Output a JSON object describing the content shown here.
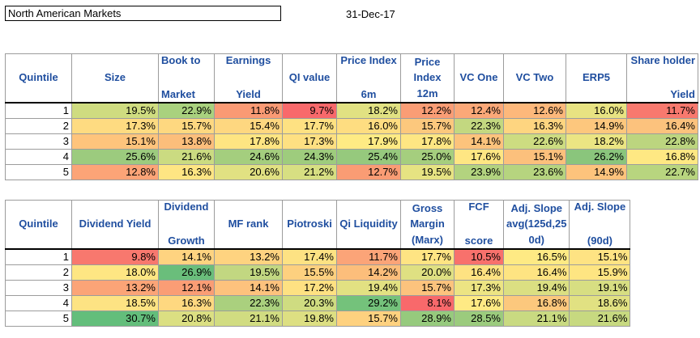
{
  "title": "North American Markets",
  "date": "31-Dec-17",
  "table1": {
    "columns": [
      {
        "lines": [
          "Quintile"
        ],
        "align": "mid",
        "width": 82
      },
      {
        "lines": [
          "Size"
        ],
        "align": "mid",
        "width": 107
      },
      {
        "lines": [
          "Book to",
          "Market"
        ],
        "align": "left",
        "width": 69
      },
      {
        "lines": [
          "Earnings",
          "Yield"
        ],
        "align": "mid",
        "width": 84
      },
      {
        "lines": [
          "QI value"
        ],
        "align": "mid",
        "width": 67
      },
      {
        "lines": [
          "Price Index",
          "6m"
        ],
        "align": "mid",
        "width": 79
      },
      {
        "lines": [
          "Price",
          "Index",
          "12m"
        ],
        "align": "mid",
        "width": 66
      },
      {
        "lines": [
          "VC One"
        ],
        "align": "mid",
        "width": 61
      },
      {
        "lines": [
          "VC Two"
        ],
        "align": "mid",
        "width": 77
      },
      {
        "lines": [
          "ERP5"
        ],
        "align": "mid",
        "width": 75
      },
      {
        "lines": [
          "Share holder",
          "Yield"
        ],
        "align": "right",
        "width": 88
      }
    ],
    "rows": [
      [
        "1",
        "19.5%",
        "22.9%",
        "11.8%",
        "9.7%",
        "18.2%",
        "12.2%",
        "12.4%",
        "12.6%",
        "16.0%",
        "11.7%"
      ],
      [
        "2",
        "17.3%",
        "15.7%",
        "15.4%",
        "17.7%",
        "16.0%",
        "15.7%",
        "22.3%",
        "16.3%",
        "14.9%",
        "16.4%"
      ],
      [
        "3",
        "15.1%",
        "13.8%",
        "17.8%",
        "17.3%",
        "17.9%",
        "17.8%",
        "14.1%",
        "22.6%",
        "18.2%",
        "22.8%"
      ],
      [
        "4",
        "25.6%",
        "21.6%",
        "24.6%",
        "24.3%",
        "25.4%",
        "25.0%",
        "17.6%",
        "15.1%",
        "26.2%",
        "16.8%"
      ],
      [
        "5",
        "12.8%",
        "16.3%",
        "20.6%",
        "21.2%",
        "12.7%",
        "19.5%",
        "23.9%",
        "23.6%",
        "14.9%",
        "22.7%"
      ]
    ],
    "colors": [
      [
        "#ffffff",
        "#cfdc80",
        "#a9d17e",
        "#fa9a74",
        "#f8696b",
        "#e1e182",
        "#fa9d75",
        "#fba878",
        "#fdb87b",
        "#e8e382",
        "#f8796e"
      ],
      [
        "#ffffff",
        "#fedb81",
        "#fed880",
        "#fed780",
        "#fee182",
        "#fedd81",
        "#fcc87d",
        "#c3d880",
        "#fed580",
        "#fdc77d",
        "#fcc27d"
      ],
      [
        "#ffffff",
        "#fec47c",
        "#fcbe7b",
        "#fee582",
        "#fee082",
        "#feeb84",
        "#fee683",
        "#fcc37c",
        "#cddc81",
        "#ebe583",
        "#bcd57f"
      ],
      [
        "#ffffff",
        "#9ccb7e",
        "#cbdb81",
        "#a4ce7e",
        "#9ecc7d",
        "#96c97d",
        "#a5ce7e",
        "#fee683",
        "#fcc07c",
        "#8ac57c",
        "#fee883"
      ],
      [
        "#ffffff",
        "#fca477",
        "#fee583",
        "#e1e182",
        "#d7df82",
        "#fa9c74",
        "#e6e382",
        "#b3d37f",
        "#b6d47f",
        "#fdc37c",
        "#b8d57f"
      ]
    ]
  },
  "table2": {
    "columns": [
      {
        "lines": [
          "Quintile"
        ],
        "align": "mid",
        "width": 82
      },
      {
        "lines": [
          "Dividend Yield"
        ],
        "align": "mid",
        "width": 107
      },
      {
        "lines": [
          "Dividend",
          "Growth"
        ],
        "align": "mid",
        "width": 69
      },
      {
        "lines": [
          "MF rank"
        ],
        "align": "mid",
        "width": 84
      },
      {
        "lines": [
          "Piotroski"
        ],
        "align": "mid",
        "width": 67
      },
      {
        "lines": [
          "Qi Liquidity"
        ],
        "align": "mid",
        "width": 79
      },
      {
        "lines": [
          "Gross",
          "Margin",
          "(Marx)"
        ],
        "align": "mid",
        "width": 66
      },
      {
        "lines": [
          "FCF",
          "score"
        ],
        "align": "mid",
        "width": 61
      },
      {
        "lines": [
          "Adj. Slope",
          "avg(125d,25",
          "0d)"
        ],
        "align": "mid",
        "width": 77
      },
      {
        "lines": [
          "Adj. Slope",
          "(90d)"
        ],
        "align": "mid",
        "width": 75
      }
    ],
    "rows": [
      [
        "1",
        "9.8%",
        "14.1%",
        "13.2%",
        "17.4%",
        "11.7%",
        "17.7%",
        "10.5%",
        "16.5%",
        "15.1%"
      ],
      [
        "2",
        "18.0%",
        "26.9%",
        "19.5%",
        "15.5%",
        "14.2%",
        "20.0%",
        "16.4%",
        "16.4%",
        "15.9%"
      ],
      [
        "3",
        "13.2%",
        "12.1%",
        "14.1%",
        "17.2%",
        "19.4%",
        "15.7%",
        "17.3%",
        "19.4%",
        "19.1%"
      ],
      [
        "4",
        "18.5%",
        "16.3%",
        "22.3%",
        "20.3%",
        "29.2%",
        "8.1%",
        "17.6%",
        "16.8%",
        "18.6%"
      ],
      [
        "5",
        "30.7%",
        "20.8%",
        "21.1%",
        "19.8%",
        "15.7%",
        "28.9%",
        "28.5%",
        "21.1%",
        "21.6%"
      ]
    ],
    "colors": [
      [
        "#ffffff",
        "#f8786e",
        "#fed380",
        "#fed380",
        "#fde283",
        "#fba478",
        "#fee483",
        "#f8716c",
        "#feea84",
        "#fee383"
      ],
      [
        "#ffffff",
        "#fee683",
        "#6abe7b",
        "#c2d781",
        "#fdd07f",
        "#fcbe7b",
        "#dfe082",
        "#fee282",
        "#fee482",
        "#fee582"
      ],
      [
        "#ffffff",
        "#fba477",
        "#fa9d75",
        "#fdc27d",
        "#fee182",
        "#e2e182",
        "#fcc37d",
        "#ece483",
        "#dbdf82",
        "#d7de82"
      ],
      [
        "#ffffff",
        "#fde383",
        "#fed880",
        "#aad07e",
        "#cfdc81",
        "#74c27b",
        "#f8696b",
        "#feea84",
        "#fcc87d",
        "#e1e182"
      ],
      [
        "#ffffff",
        "#63be7b",
        "#dbdf82",
        "#d1dc81",
        "#dddf82",
        "#fed17f",
        "#96ca7d",
        "#9bcb7d",
        "#c9da81",
        "#c7d980"
      ]
    ]
  }
}
